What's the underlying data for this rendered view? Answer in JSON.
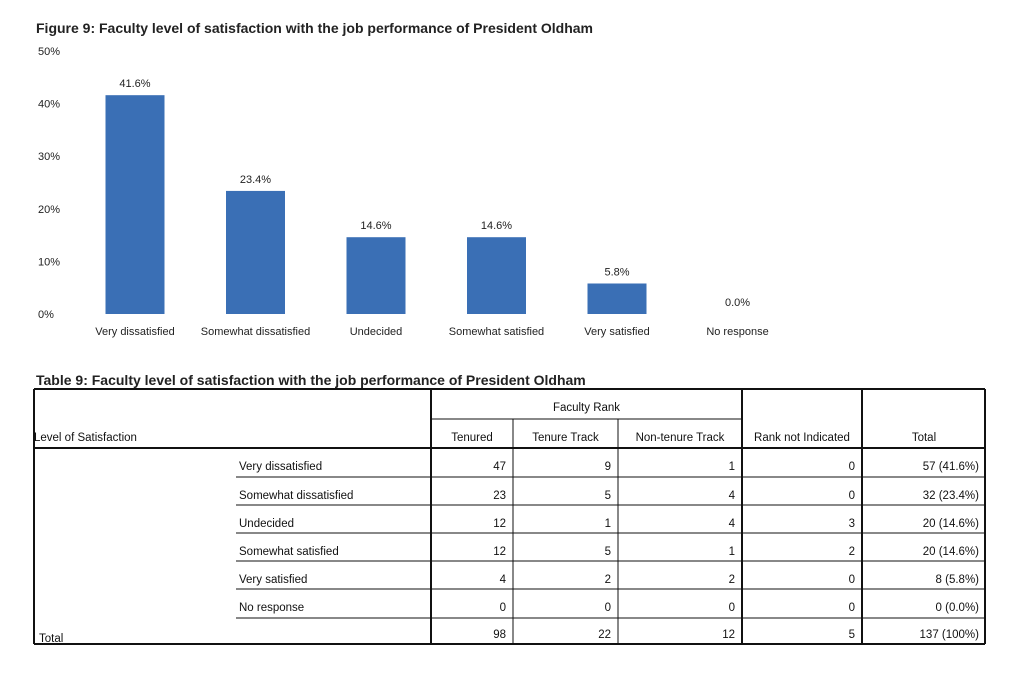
{
  "figure_title": "Figure 9: Faculty level of satisfaction with the job performance of President Oldham",
  "chart_data": {
    "type": "bar",
    "categories": [
      "Very dissatisfied",
      "Somewhat dissatisfied",
      "Undecided",
      "Somewhat satisfied",
      "Very satisfied",
      "No response"
    ],
    "values": [
      41.6,
      23.4,
      14.6,
      14.6,
      5.8,
      0.0
    ],
    "data_labels": [
      "41.6%",
      "23.4%",
      "14.6%",
      "14.6%",
      "5.8%",
      "0.0%"
    ],
    "y_ticks": [
      "0%",
      "10%",
      "20%",
      "30%",
      "40%",
      "50%"
    ],
    "ylim": [
      0,
      50
    ],
    "bar_color": "#3a6fb5",
    "grid": false,
    "legend": "none"
  },
  "table": {
    "title": "Table 9: Faculty level of satisfaction with the job performance of President Oldham",
    "row_header": "Level of Satisfaction",
    "group_header": "Faculty Rank",
    "columns": [
      "Tenured",
      "Tenure Track",
      "Non-tenure Track",
      "Rank not Indicated",
      "Total"
    ],
    "rows": [
      {
        "label": "Very dissatisfied",
        "values": [
          "47",
          "9",
          "1",
          "0",
          "57 (41.6%)"
        ]
      },
      {
        "label": "Somewhat dissatisfied",
        "values": [
          "23",
          "5",
          "4",
          "0",
          "32 (23.4%)"
        ]
      },
      {
        "label": "Undecided",
        "values": [
          "12",
          "1",
          "4",
          "3",
          "20 (14.6%)"
        ]
      },
      {
        "label": "Somewhat satisfied",
        "values": [
          "12",
          "5",
          "1",
          "2",
          "20 (14.6%)"
        ]
      },
      {
        "label": "Very satisfied",
        "values": [
          "4",
          "2",
          "2",
          "0",
          "8 (5.8%)"
        ]
      },
      {
        "label": "No response",
        "values": [
          "0",
          "0",
          "0",
          "0",
          "0 (0.0%)"
        ]
      }
    ],
    "total_row": {
      "label": "Total",
      "values": [
        "98",
        "22",
        "12",
        "5",
        "137 (100%)"
      ]
    }
  }
}
